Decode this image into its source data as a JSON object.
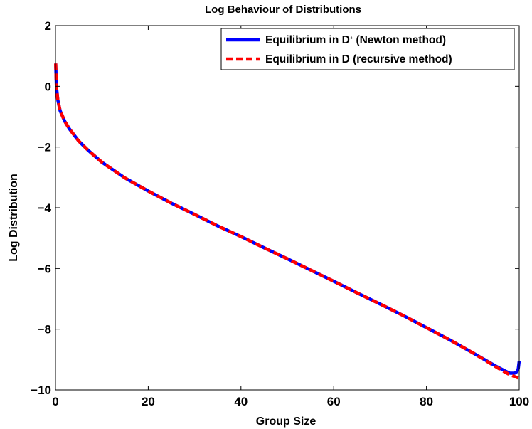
{
  "chart_data": {
    "type": "line",
    "title": "Log Behaviour of Distributions",
    "xlabel": "Group Size",
    "ylabel": "Log Distribution",
    "xlim": [
      0,
      100
    ],
    "ylim": [
      -10,
      2
    ],
    "xticks": [
      0,
      20,
      40,
      60,
      80,
      100
    ],
    "yticks": [
      -10,
      -8,
      -6,
      -4,
      -2,
      0,
      2
    ],
    "xtick_labels": [
      "0",
      "20",
      "40",
      "60",
      "80",
      "100"
    ],
    "ytick_labels": [
      "−10",
      "−8",
      "−6",
      "−4",
      "−2",
      "0",
      "2"
    ],
    "grid": false,
    "legend_position": "top-right",
    "series": [
      {
        "name": "Equilibrium in D‘ (Newton method)",
        "color": "#0000ff",
        "style": "solid",
        "x": [
          0.05,
          0.2,
          0.5,
          1,
          2,
          3,
          5,
          7,
          10,
          15,
          20,
          25,
          30,
          35,
          40,
          45,
          50,
          55,
          60,
          65,
          70,
          75,
          80,
          85,
          90,
          95,
          97,
          98,
          99,
          99.5,
          99.8,
          100
        ],
        "y": [
          0.75,
          0.0,
          -0.45,
          -0.8,
          -1.15,
          -1.4,
          -1.8,
          -2.1,
          -2.5,
          -3.02,
          -3.45,
          -3.85,
          -4.22,
          -4.6,
          -4.95,
          -5.32,
          -5.68,
          -6.05,
          -6.42,
          -6.8,
          -7.17,
          -7.55,
          -7.95,
          -8.35,
          -8.78,
          -9.22,
          -9.38,
          -9.45,
          -9.45,
          -9.4,
          -9.3,
          -9.05
        ]
      },
      {
        "name": "Equilibrium in D (recursive method)",
        "color": "#ff0000",
        "style": "dashed",
        "x": [
          0.05,
          0.2,
          0.5,
          1,
          2,
          3,
          5,
          7,
          10,
          15,
          20,
          25,
          30,
          35,
          40,
          45,
          50,
          55,
          60,
          65,
          70,
          75,
          80,
          85,
          90,
          95,
          97,
          98,
          99,
          100
        ],
        "y": [
          0.75,
          0.0,
          -0.45,
          -0.8,
          -1.15,
          -1.4,
          -1.8,
          -2.1,
          -2.5,
          -3.02,
          -3.45,
          -3.85,
          -4.22,
          -4.6,
          -4.95,
          -5.32,
          -5.68,
          -6.05,
          -6.42,
          -6.8,
          -7.17,
          -7.55,
          -7.95,
          -8.35,
          -8.78,
          -9.24,
          -9.42,
          -9.5,
          -9.56,
          -9.62
        ]
      }
    ]
  }
}
